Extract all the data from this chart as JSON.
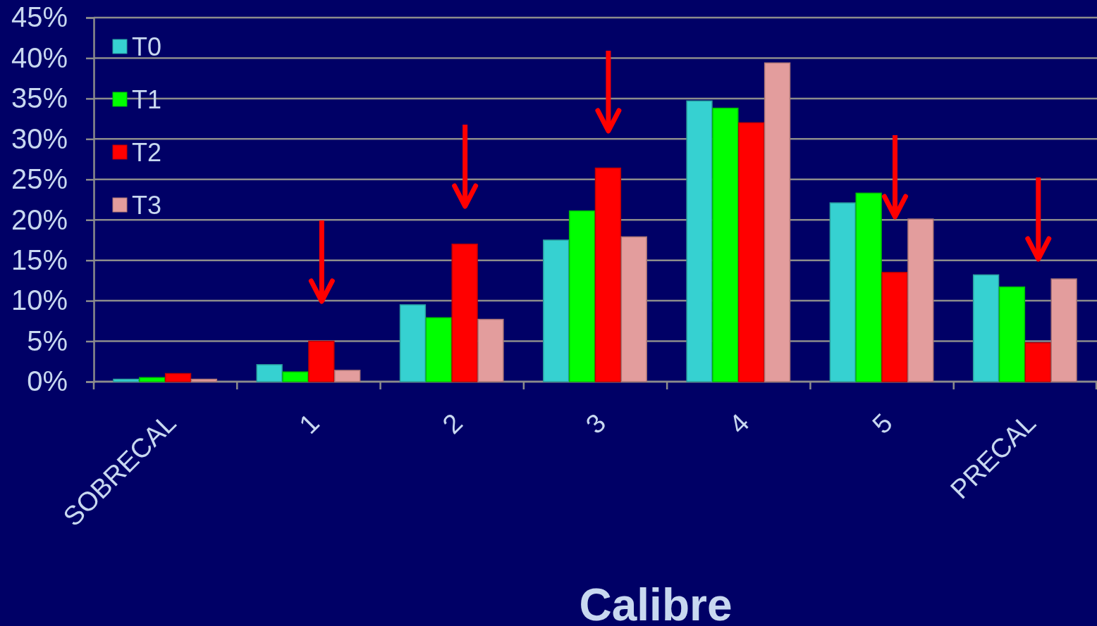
{
  "chart_data": {
    "type": "bar",
    "xlabel": "Calibre",
    "categories": [
      "SOBRECAL",
      "1",
      "2",
      "3",
      "4",
      "5",
      "PRECAL"
    ],
    "series": [
      {
        "name": "T0",
        "color": "#36d1d1",
        "values": [
          0.3,
          2.1,
          9.5,
          17.5,
          34.7,
          22.1,
          13.2
        ]
      },
      {
        "name": "T1",
        "color": "#00ff00",
        "values": [
          0.5,
          1.2,
          7.9,
          21.1,
          33.8,
          23.3,
          11.7
        ]
      },
      {
        "name": "T2",
        "color": "#ff0000",
        "values": [
          1.0,
          5.0,
          17.0,
          26.4,
          32.0,
          13.5,
          4.8
        ]
      },
      {
        "name": "T3",
        "color": "#e39d9d",
        "values": [
          0.3,
          1.4,
          7.7,
          17.9,
          39.4,
          20.1,
          12.7
        ]
      }
    ],
    "ylim": [
      0,
      45
    ],
    "yticks": [
      {
        "value": 0,
        "label": "0%"
      },
      {
        "value": 5,
        "label": "5%"
      },
      {
        "value": 10,
        "label": "10%"
      },
      {
        "value": 15,
        "label": "15%"
      },
      {
        "value": 20,
        "label": "20%"
      },
      {
        "value": 25,
        "label": "25%"
      },
      {
        "value": 30,
        "label": "30%"
      },
      {
        "value": 35,
        "label": "35%"
      },
      {
        "value": 40,
        "label": "40%"
      },
      {
        "value": 45,
        "label": "45%"
      }
    ],
    "grid": "y",
    "legend": "top left"
  }
}
